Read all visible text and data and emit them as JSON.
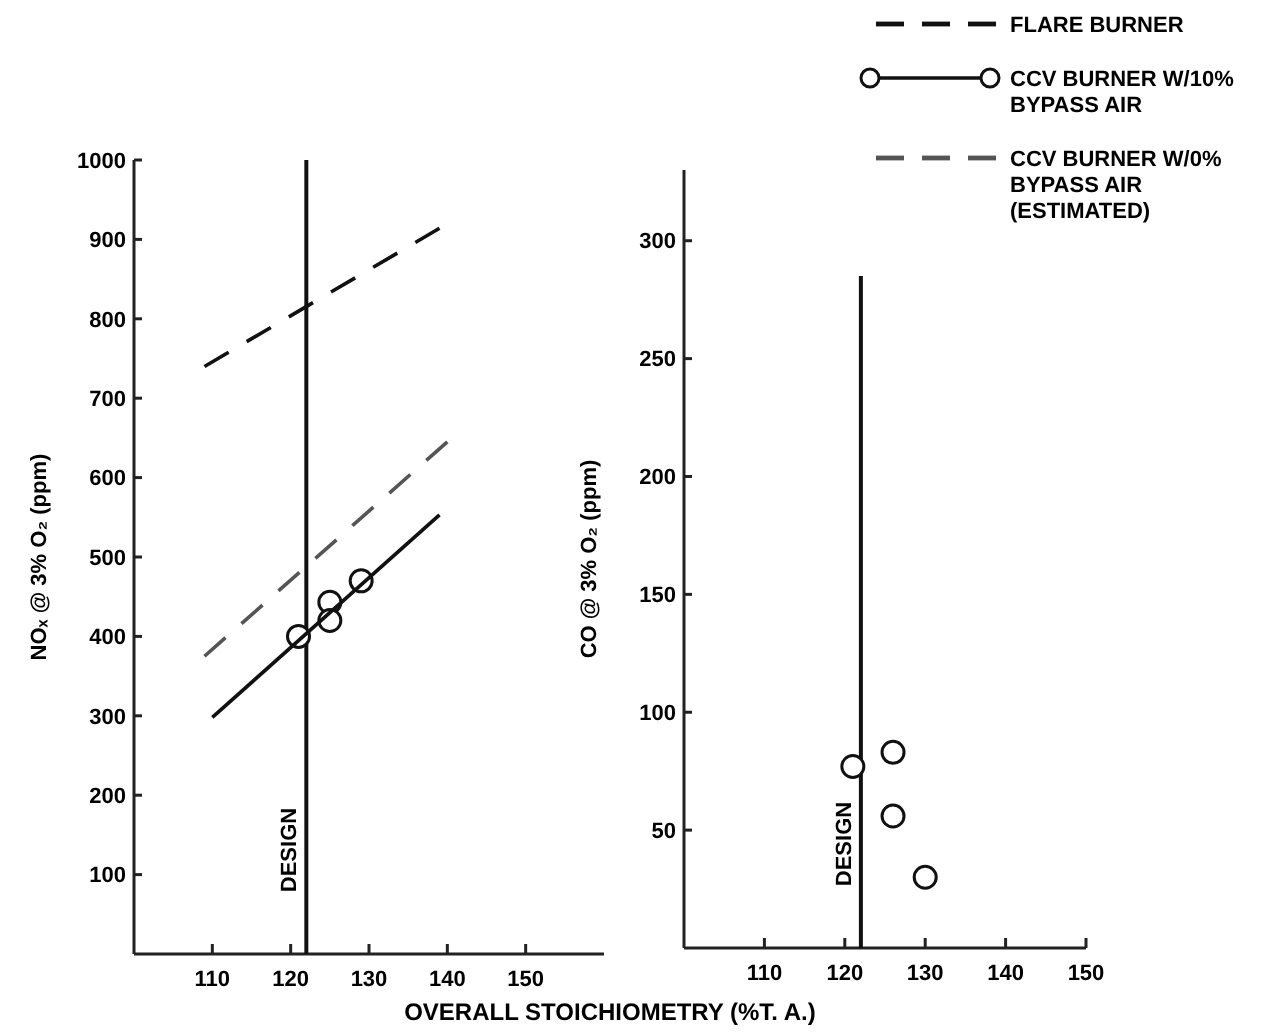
{
  "chart_data": [
    {
      "type": "line",
      "xlabel": "OVERALL STOICHIOMETRY (%T. A.)",
      "ylabel": "NOₓ @ 3% O₂ (ppm)",
      "xlim": [
        100,
        160
      ],
      "ylim": [
        0,
        1000
      ],
      "xticks": [
        110,
        120,
        130,
        140,
        150
      ],
      "yticks": [
        100,
        200,
        300,
        400,
        500,
        600,
        700,
        800,
        900,
        1000
      ],
      "legend": "top right",
      "grid": false,
      "ref_lines": [
        {
          "axis": "x",
          "value": 122,
          "label": "DESIGN"
        }
      ],
      "series": [
        {
          "name": "FLARE BURNER",
          "color": "#111111",
          "line_style": "dashed",
          "x": [
            109,
            139
          ],
          "values": [
            740,
            914
          ]
        },
        {
          "name": "CCV BURNER W/10% BYPASS AIR",
          "type": "scatter",
          "marker": "circle",
          "color": "#111111",
          "x": [
            121,
            125,
            125,
            129
          ],
          "values": [
            400,
            443,
            420,
            470
          ]
        },
        {
          "color": "#111111",
          "line_style": "solid",
          "x": [
            110,
            139
          ],
          "values": [
            298,
            553
          ]
        },
        {
          "name": "CCV BURNER W/0% BYPASS AIR (ESTIMATED)",
          "color": "#555555",
          "line_style": "dashed",
          "x": [
            109,
            140
          ],
          "values": [
            375,
            645
          ]
        }
      ]
    },
    {
      "type": "scatter",
      "ylabel": "CO @ 3% O₂ (ppm)",
      "xlim": [
        100,
        150
      ],
      "ylim": [
        0,
        330
      ],
      "xticks": [
        110,
        120,
        130,
        140,
        150
      ],
      "yticks": [
        50,
        100,
        150,
        200,
        250,
        300
      ],
      "grid": false,
      "ref_lines": [
        {
          "axis": "x",
          "value": 122,
          "label": "DESIGN"
        }
      ],
      "series": [
        {
          "marker": "circle",
          "color": "#111111",
          "x": [
            121,
            126,
            126,
            130
          ],
          "values": [
            77,
            83,
            56,
            30
          ]
        }
      ]
    }
  ]
}
